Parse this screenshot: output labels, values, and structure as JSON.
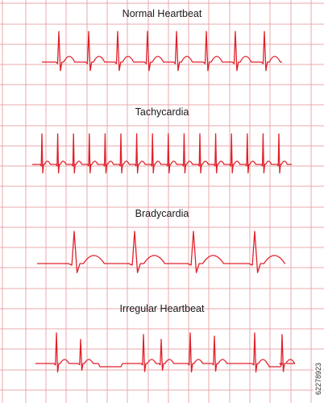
{
  "rhythms": [
    {
      "title": "Normal Heartbeat",
      "pattern": "normal"
    },
    {
      "title": "Tachycardia",
      "pattern": "tachy"
    },
    {
      "title": "Bradycardia",
      "pattern": "brady"
    },
    {
      "title": "Irregular Heartbeat",
      "pattern": "irregular"
    }
  ],
  "stock_id": "62278923",
  "colors": {
    "trace": "#e0202a",
    "grid": "#e8a8ae",
    "background": "#ffffff",
    "text": "#1a1a1a"
  }
}
